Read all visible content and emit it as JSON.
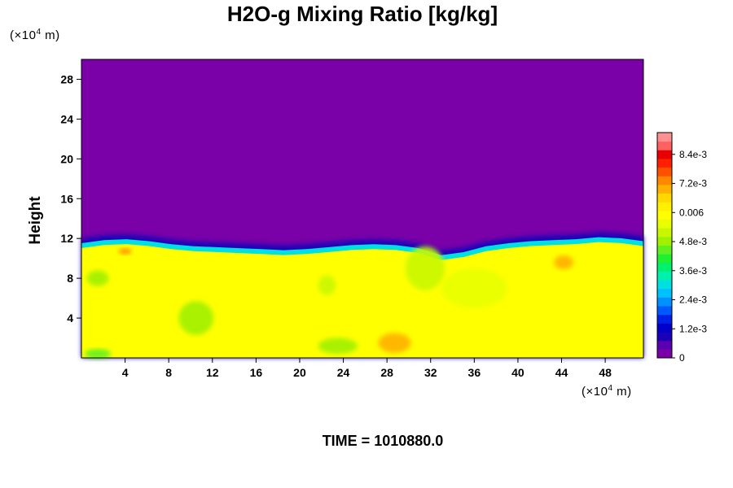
{
  "chart_data": {
    "type": "heatmap",
    "title": "H2O-g Mixing Ratio [kg/kg]",
    "x_unit": {
      "prefix": "(×10",
      "exp": "4",
      "suffix": " m)"
    },
    "y_unit": {
      "prefix": "(×10",
      "exp": "4",
      "suffix": " m)"
    },
    "ylabel": "Height",
    "time_label": "TIME = 1010880.0",
    "xlim": [
      0,
      51.5
    ],
    "ylim": [
      0,
      30
    ],
    "x_ticks": [
      4,
      8,
      12,
      16,
      20,
      24,
      28,
      32,
      36,
      40,
      44,
      48
    ],
    "y_ticks": [
      4,
      8,
      12,
      16,
      20,
      24,
      28
    ],
    "colorbar": {
      "range": [
        0,
        0.0093
      ],
      "tick_values": [
        0,
        0.0012,
        0.0024,
        0.0036,
        0.0048,
        0.006,
        0.0072,
        0.0084
      ],
      "tick_labels": [
        "0",
        "1.2e-3",
        "2.4e-3",
        "3.6e-3",
        "4.8e-3",
        "0.006",
        "7.2e-3",
        "8.4e-3"
      ],
      "colors": [
        "#7a00a8",
        "#5a00b0",
        "#1c00b8",
        "#0000c8",
        "#0020e8",
        "#0058ff",
        "#0090ff",
        "#00c0ff",
        "#00e0e0",
        "#00f0b0",
        "#00f070",
        "#20f030",
        "#60f020",
        "#a0f000",
        "#c8f800",
        "#e8ff00",
        "#ffff00",
        "#fff000",
        "#ffd800",
        "#ffb000",
        "#ff8800",
        "#ff5000",
        "#ff2000",
        "#e80000",
        "#ff6060",
        "#ff9090"
      ]
    },
    "field": {
      "upper_value": 0,
      "lower_value": 0.0058,
      "interface_height": [
        11.2,
        11.5,
        11.6,
        11.4,
        11.1,
        10.9,
        10.8,
        10.7,
        10.6,
        10.5,
        10.6,
        10.8,
        11.0,
        11.1,
        11.0,
        10.7,
        10.0,
        10.3,
        10.9,
        11.2,
        11.4,
        11.5,
        11.6,
        11.8,
        11.7,
        11.4
      ],
      "blobs": [
        {
          "x": 10.5,
          "y": 4.0,
          "rx": 1.6,
          "ry": 1.7,
          "value": 0.0048
        },
        {
          "x": 23.5,
          "y": 1.2,
          "rx": 1.8,
          "ry": 0.8,
          "value": 0.005
        },
        {
          "x": 28.7,
          "y": 1.5,
          "rx": 1.5,
          "ry": 1.0,
          "value": 0.0068
        },
        {
          "x": 22.5,
          "y": 7.3,
          "rx": 0.8,
          "ry": 1.0,
          "value": 0.0052
        },
        {
          "x": 1.5,
          "y": 0.4,
          "rx": 1.2,
          "ry": 0.5,
          "value": 0.0045
        },
        {
          "x": 1.5,
          "y": 8.0,
          "rx": 1.0,
          "ry": 0.8,
          "value": 0.005
        },
        {
          "x": 44.2,
          "y": 9.6,
          "rx": 0.9,
          "ry": 0.7,
          "value": 0.0068
        },
        {
          "x": 4.0,
          "y": 10.7,
          "rx": 0.6,
          "ry": 0.3,
          "value": 0.0075
        },
        {
          "x": 31.5,
          "y": 9.0,
          "rx": 1.8,
          "ry": 2.2,
          "value": 0.0052
        },
        {
          "x": 36.0,
          "y": 7.0,
          "rx": 3.0,
          "ry": 2.0,
          "value": 0.0055
        }
      ]
    }
  }
}
